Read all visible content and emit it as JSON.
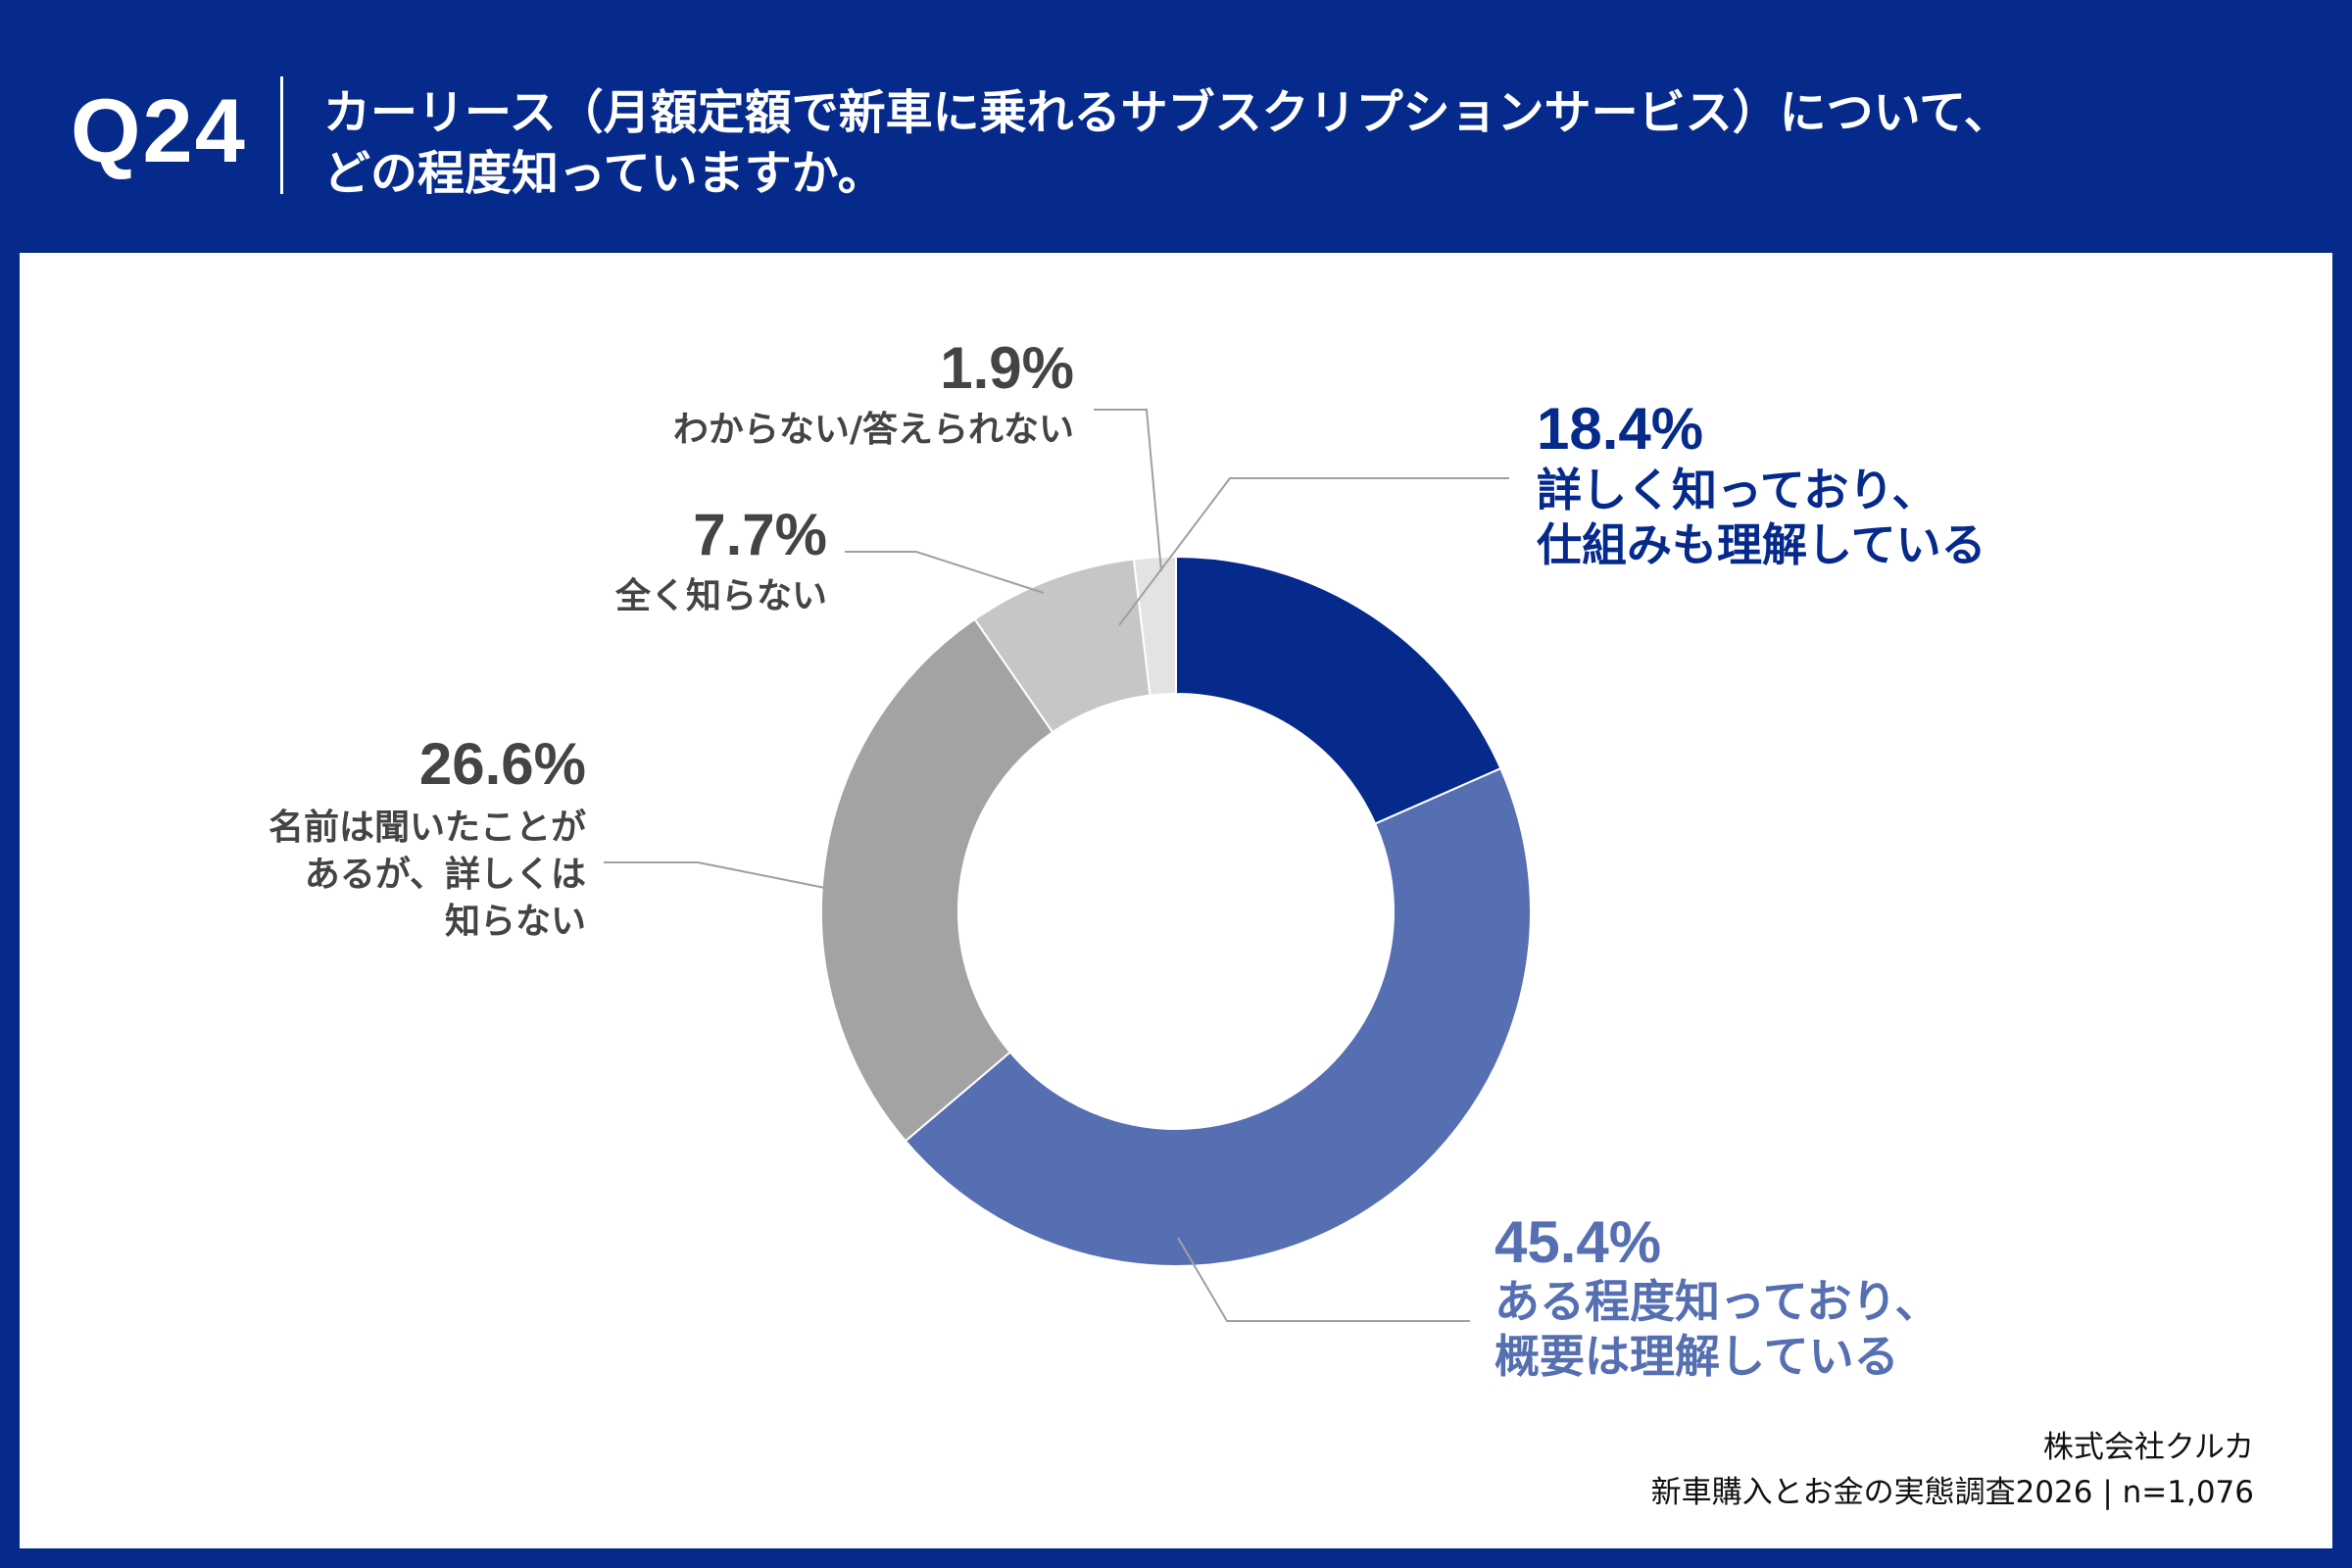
{
  "header": {
    "q_number": "Q24",
    "question_line1": "カーリース（月額定額で新車に乗れるサブスクリプションサービス）について、",
    "question_line2": "どの程度知っていますか。"
  },
  "chart_data": {
    "type": "pie",
    "variant": "donut",
    "title": "カーリース（月額定額で新車に乗れるサブスクリプションサービス）について、どの程度知っていますか。",
    "unit": "%",
    "slices": [
      {
        "label_lines": [
          "詳しく知っており、",
          "仕組みも理解している"
        ],
        "value": 18.4,
        "value_label": "18.4%",
        "color": "#052a8c",
        "label_color": "#052a8c"
      },
      {
        "label_lines": [
          "ある程度知っており、",
          "概要は理解している"
        ],
        "value": 45.4,
        "value_label": "45.4%",
        "color": "#566fb2",
        "label_color": "#566fb2"
      },
      {
        "label_lines": [
          "名前は聞いたことが",
          "あるが、詳しくは",
          "知らない"
        ],
        "value": 26.6,
        "value_label": "26.6%",
        "color": "#a3a3a3",
        "label_color": "#444444"
      },
      {
        "label_lines": [
          "全く知らない"
        ],
        "value": 7.7,
        "value_label": "7.7%",
        "color": "#c6c6c6",
        "label_color": "#444444"
      },
      {
        "label_lines": [
          "わからない/答えられない"
        ],
        "value": 1.9,
        "value_label": "1.9%",
        "color": "#e3e3e3",
        "label_color": "#444444"
      }
    ]
  },
  "footer": {
    "company": "株式会社クルカ",
    "survey": "新車購入とお金の実態調査2026 | n=1,076"
  }
}
